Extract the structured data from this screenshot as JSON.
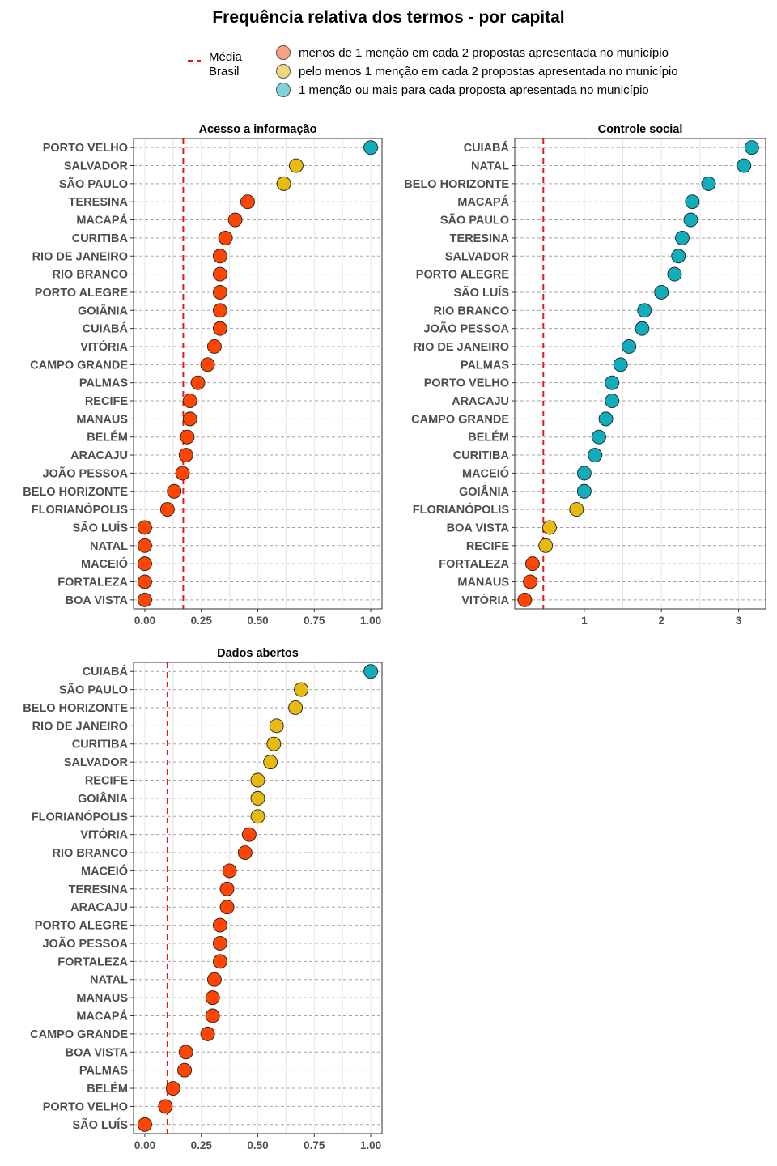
{
  "title": "Frequência relativa dos termos - por capital",
  "legend": {
    "mean_line_label_1": "Média",
    "mean_line_label_2": "Brasil",
    "items": [
      {
        "label": "menos de 1 menção em cada 2 propostas apresentada no município",
        "color": "#F8A282"
      },
      {
        "label": "pelo menos 1 menção em cada 2 propostas apresentada no município",
        "color": "#F1D77A"
      },
      {
        "label": "1 menção ou mais para cada proposta apresentada no município",
        "color": "#7FD3DB"
      }
    ]
  },
  "colors": {
    "low": "#FF4500",
    "mid": "#E8B90E",
    "high": "#12ADBC",
    "mean_line": "#E41A1C",
    "grid_dashed": "#A6A6A6",
    "grid_minor": "#E8E8E8"
  },
  "chart_data": [
    {
      "type": "scatter",
      "title": "Acesso a informação",
      "xlim": [
        -0.05,
        1.05
      ],
      "xticks": [
        0,
        0.25,
        0.5,
        0.75,
        1
      ],
      "xtick_labels": [
        "0.00",
        "0.25",
        "0.50",
        "0.75",
        "1.00"
      ],
      "mean": 0.17,
      "points": [
        {
          "city": "PORTO VELHO",
          "value": 1.0,
          "group": "high"
        },
        {
          "city": "SALVADOR",
          "value": 0.67,
          "group": "mid"
        },
        {
          "city": "SÃO PAULO",
          "value": 0.615,
          "group": "mid"
        },
        {
          "city": "TERESINA",
          "value": 0.455,
          "group": "low"
        },
        {
          "city": "MACAPÁ",
          "value": 0.4,
          "group": "low"
        },
        {
          "city": "CURITIBA",
          "value": 0.357,
          "group": "low"
        },
        {
          "city": "RIO DE JANEIRO",
          "value": 0.333,
          "group": "low"
        },
        {
          "city": "RIO BRANCO",
          "value": 0.333,
          "group": "low"
        },
        {
          "city": "PORTO ALEGRE",
          "value": 0.333,
          "group": "low"
        },
        {
          "city": "GOIÂNIA",
          "value": 0.333,
          "group": "low"
        },
        {
          "city": "CUIABÁ",
          "value": 0.333,
          "group": "low"
        },
        {
          "city": "VITÓRIA",
          "value": 0.308,
          "group": "low"
        },
        {
          "city": "CAMPO GRANDE",
          "value": 0.278,
          "group": "low"
        },
        {
          "city": "PALMAS",
          "value": 0.235,
          "group": "low"
        },
        {
          "city": "RECIFE",
          "value": 0.2,
          "group": "low"
        },
        {
          "city": "MANAUS",
          "value": 0.2,
          "group": "low"
        },
        {
          "city": "BELÉM",
          "value": 0.188,
          "group": "low"
        },
        {
          "city": "ARACAJU",
          "value": 0.182,
          "group": "low"
        },
        {
          "city": "JOÃO PESSOA",
          "value": 0.167,
          "group": "low"
        },
        {
          "city": "BELO HORIZONTE",
          "value": 0.13,
          "group": "low"
        },
        {
          "city": "FLORIANÓPOLIS",
          "value": 0.1,
          "group": "low"
        },
        {
          "city": "SÃO LUÍS",
          "value": 0.0,
          "group": "low"
        },
        {
          "city": "NATAL",
          "value": 0.0,
          "group": "low"
        },
        {
          "city": "MACEIÓ",
          "value": 0.0,
          "group": "low"
        },
        {
          "city": "FORTALEZA",
          "value": 0.0,
          "group": "low"
        },
        {
          "city": "BOA VISTA",
          "value": 0.0,
          "group": "low"
        }
      ]
    },
    {
      "type": "scatter",
      "title": "Controle social",
      "xlim": [
        0.1,
        3.35
      ],
      "xticks": [
        1,
        2,
        3
      ],
      "xtick_labels": [
        "1",
        "2",
        "3"
      ],
      "mean": 0.47,
      "points": [
        {
          "city": "CUIABÁ",
          "value": 3.17,
          "group": "high"
        },
        {
          "city": "NATAL",
          "value": 3.07,
          "group": "high"
        },
        {
          "city": "BELO HORIZONTE",
          "value": 2.61,
          "group": "high"
        },
        {
          "city": "MACAPÁ",
          "value": 2.4,
          "group": "high"
        },
        {
          "city": "SÃO PAULO",
          "value": 2.38,
          "group": "high"
        },
        {
          "city": "TERESINA",
          "value": 2.27,
          "group": "high"
        },
        {
          "city": "SALVADOR",
          "value": 2.22,
          "group": "high"
        },
        {
          "city": "PORTO ALEGRE",
          "value": 2.17,
          "group": "high"
        },
        {
          "city": "SÃO LUÍS",
          "value": 2.0,
          "group": "high"
        },
        {
          "city": "RIO BRANCO",
          "value": 1.78,
          "group": "high"
        },
        {
          "city": "JOÃO PESSOA",
          "value": 1.75,
          "group": "high"
        },
        {
          "city": "RIO DE JANEIRO",
          "value": 1.58,
          "group": "high"
        },
        {
          "city": "PALMAS",
          "value": 1.47,
          "group": "high"
        },
        {
          "city": "PORTO VELHO",
          "value": 1.36,
          "group": "high"
        },
        {
          "city": "ARACAJU",
          "value": 1.36,
          "group": "high"
        },
        {
          "city": "CAMPO GRANDE",
          "value": 1.28,
          "group": "high"
        },
        {
          "city": "BELÉM",
          "value": 1.19,
          "group": "high"
        },
        {
          "city": "CURITIBA",
          "value": 1.14,
          "group": "high"
        },
        {
          "city": "MACEIÓ",
          "value": 1.0,
          "group": "high"
        },
        {
          "city": "GOIÂNIA",
          "value": 1.0,
          "group": "high"
        },
        {
          "city": "FLORIANÓPOLIS",
          "value": 0.9,
          "group": "mid"
        },
        {
          "city": "BOA VISTA",
          "value": 0.55,
          "group": "mid"
        },
        {
          "city": "RECIFE",
          "value": 0.5,
          "group": "mid"
        },
        {
          "city": "FORTALEZA",
          "value": 0.33,
          "group": "low"
        },
        {
          "city": "MANAUS",
          "value": 0.3,
          "group": "low"
        },
        {
          "city": "VITÓRIA",
          "value": 0.23,
          "group": "low"
        }
      ]
    },
    {
      "type": "scatter",
      "title": "Dados abertos",
      "xlim": [
        -0.05,
        1.05
      ],
      "xticks": [
        0,
        0.25,
        0.5,
        0.75,
        1
      ],
      "xtick_labels": [
        "0.00",
        "0.25",
        "0.50",
        "0.75",
        "1.00"
      ],
      "mean": 0.1,
      "points": [
        {
          "city": "CUIABÁ",
          "value": 1.0,
          "group": "high"
        },
        {
          "city": "SÃO PAULO",
          "value": 0.692,
          "group": "mid"
        },
        {
          "city": "BELO HORIZONTE",
          "value": 0.667,
          "group": "mid"
        },
        {
          "city": "RIO DE JANEIRO",
          "value": 0.583,
          "group": "mid"
        },
        {
          "city": "CURITIBA",
          "value": 0.571,
          "group": "mid"
        },
        {
          "city": "SALVADOR",
          "value": 0.556,
          "group": "mid"
        },
        {
          "city": "RECIFE",
          "value": 0.5,
          "group": "mid"
        },
        {
          "city": "GOIÂNIA",
          "value": 0.5,
          "group": "mid"
        },
        {
          "city": "FLORIANÓPOLIS",
          "value": 0.5,
          "group": "mid"
        },
        {
          "city": "VITÓRIA",
          "value": 0.462,
          "group": "low"
        },
        {
          "city": "RIO BRANCO",
          "value": 0.444,
          "group": "low"
        },
        {
          "city": "MACEIÓ",
          "value": 0.375,
          "group": "low"
        },
        {
          "city": "TERESINA",
          "value": 0.364,
          "group": "low"
        },
        {
          "city": "ARACAJU",
          "value": 0.364,
          "group": "low"
        },
        {
          "city": "PORTO ALEGRE",
          "value": 0.333,
          "group": "low"
        },
        {
          "city": "JOÃO PESSOA",
          "value": 0.333,
          "group": "low"
        },
        {
          "city": "FORTALEZA",
          "value": 0.333,
          "group": "low"
        },
        {
          "city": "NATAL",
          "value": 0.308,
          "group": "low"
        },
        {
          "city": "MANAUS",
          "value": 0.3,
          "group": "low"
        },
        {
          "city": "MACAPÁ",
          "value": 0.3,
          "group": "low"
        },
        {
          "city": "CAMPO GRANDE",
          "value": 0.278,
          "group": "low"
        },
        {
          "city": "BOA VISTA",
          "value": 0.182,
          "group": "low"
        },
        {
          "city": "PALMAS",
          "value": 0.176,
          "group": "low"
        },
        {
          "city": "BELÉM",
          "value": 0.125,
          "group": "low"
        },
        {
          "city": "PORTO VELHO",
          "value": 0.091,
          "group": "low"
        },
        {
          "city": "SÃO LUÍS",
          "value": 0.0,
          "group": "low"
        }
      ]
    }
  ]
}
